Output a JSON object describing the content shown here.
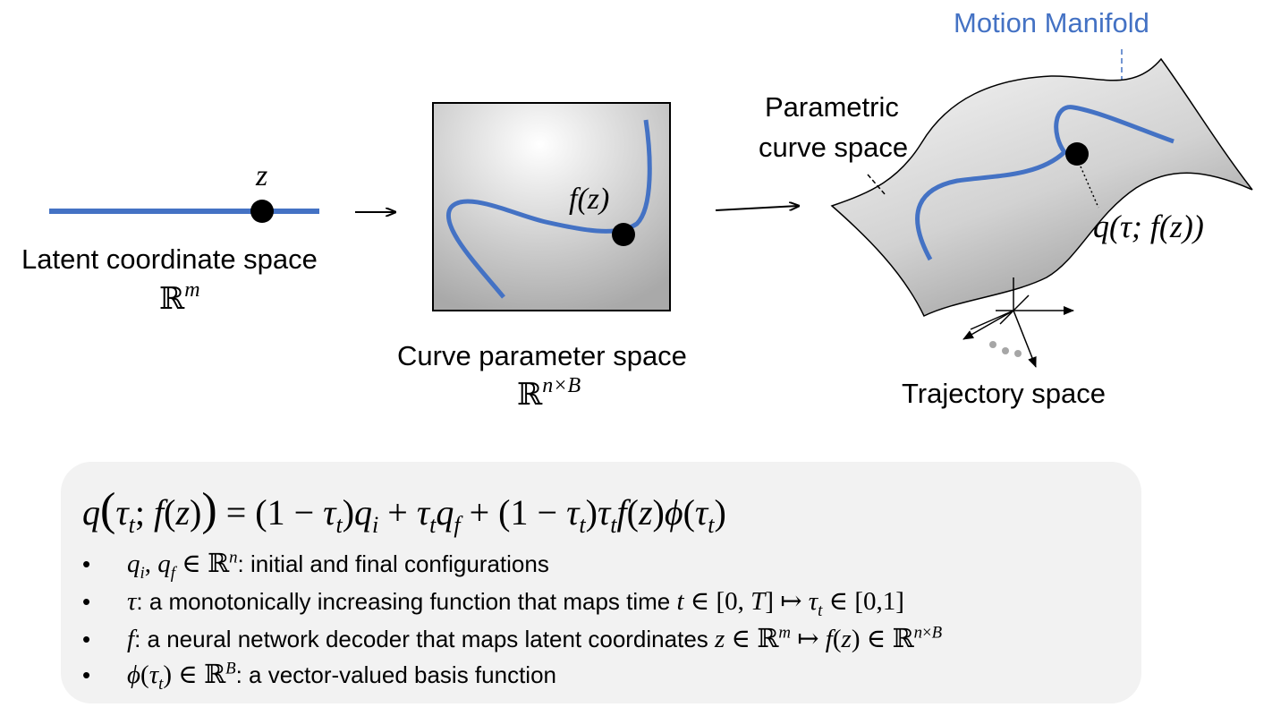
{
  "latent": {
    "label": "Latent coordinate space",
    "space": "ℝ",
    "space_sup": "m",
    "point": "z"
  },
  "curve_param": {
    "label": "Curve parameter space",
    "space": "ℝ",
    "space_sup": "n×B",
    "point": "f(z)"
  },
  "manifold": {
    "title": "Motion Manifold",
    "param_label_line1": "Parametric",
    "param_label_line2": "curve space",
    "point": "q(τ; f(z))",
    "trajectory_label": "Trajectory space"
  },
  "colors": {
    "curve": "#4472c4",
    "title": "#4472c4"
  },
  "equation": {
    "main": "q(τ_t; f(z)) = (1 − τ_t)q_i + τ_t q_f + (1 − τ_t)τ_t f(z)ϕ(τ_t)",
    "bullets": [
      {
        "math": "q_i, q_f ∈ ℝ^n",
        "text": ": initial and final configurations"
      },
      {
        "math": "τ",
        "text": ": a monotonically increasing function that maps time t ∈ [0, T] ↦ τ_t ∈ [0,1]"
      },
      {
        "math": "f",
        "text": ": a neural network decoder that maps latent coordinates z ∈ ℝ^m ↦ f(z) ∈ ℝ^(n×B)"
      },
      {
        "math": "ϕ(τ_t) ∈ ℝ^B",
        "text": ": a vector-valued basis function"
      }
    ]
  }
}
